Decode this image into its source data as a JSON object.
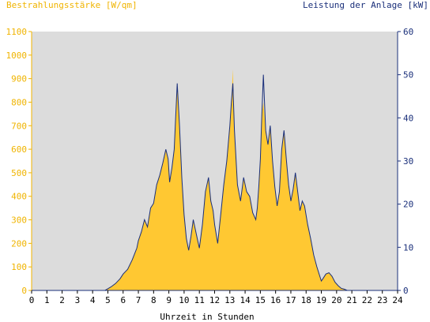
{
  "chart_data": {
    "type": "area",
    "title_left": "Bestrahlungsstärke [W/qm]",
    "title_right": "Leistung der Anlage [kW]",
    "xlabel": "Uhrzeit in Stunden",
    "x_ticks": [
      "0",
      "1",
      "2",
      "3",
      "4",
      "5",
      "6",
      "7",
      "8",
      "9",
      "10",
      "11",
      "12",
      "13",
      "14",
      "15",
      "16",
      "17",
      "18",
      "19",
      "20",
      "21",
      "22",
      "23",
      "24"
    ],
    "xlim": [
      0,
      24
    ],
    "y_left": {
      "ticks": [
        "0",
        "100",
        "200",
        "300",
        "400",
        "500",
        "600",
        "700",
        "800",
        "900",
        "1000",
        "1100"
      ],
      "ylim": [
        0,
        1100
      ]
    },
    "y_right": {
      "ticks": [
        "0",
        "10",
        "20",
        "30",
        "40",
        "50",
        "60"
      ],
      "ylim": [
        0,
        60
      ]
    },
    "grid": false,
    "colors": {
      "irradiance_fill": "#ffc832",
      "power_line": "#1a2f7a",
      "plot_bg": "#dcdcdc",
      "left_axis": "#f0b400",
      "right_axis": "#1a2f7a"
    },
    "series": [
      {
        "axis": "left",
        "style": "filled-area",
        "x": [
          0,
          4.8,
          5.0,
          5.2,
          5.5,
          5.8,
          6.0,
          6.3,
          6.6,
          6.9,
          7.0,
          7.2,
          7.4,
          7.6,
          7.8,
          8.0,
          8.2,
          8.4,
          8.6,
          8.8,
          8.95,
          9.05,
          9.2,
          9.35,
          9.45,
          9.55,
          9.7,
          9.85,
          10.0,
          10.15,
          10.3,
          10.45,
          10.6,
          10.8,
          11.0,
          11.2,
          11.4,
          11.6,
          11.75,
          11.9,
          12.0,
          12.2,
          12.4,
          12.6,
          12.8,
          13.0,
          13.1,
          13.2,
          13.3,
          13.5,
          13.7,
          13.9,
          14.1,
          14.3,
          14.5,
          14.7,
          14.8,
          14.9,
          15.0,
          15.1,
          15.2,
          15.35,
          15.5,
          15.65,
          15.8,
          15.95,
          16.1,
          16.25,
          16.4,
          16.55,
          16.7,
          16.85,
          17.0,
          17.15,
          17.3,
          17.45,
          17.6,
          17.75,
          17.9,
          18.1,
          18.3,
          18.5,
          18.7,
          18.9,
          19.0,
          19.1,
          19.3,
          19.5,
          19.7,
          19.9,
          20.1,
          20.3,
          20.5,
          20.7,
          21.0,
          24
        ],
        "values": [
          0,
          0,
          8,
          15,
          30,
          50,
          70,
          90,
          130,
          180,
          210,
          250,
          300,
          270,
          350,
          370,
          450,
          490,
          540,
          600,
          560,
          460,
          520,
          600,
          740,
          860,
          700,
          480,
          320,
          220,
          170,
          230,
          300,
          240,
          180,
          280,
          420,
          480,
          380,
          340,
          280,
          200,
          320,
          450,
          550,
          700,
          800,
          940,
          680,
          450,
          380,
          480,
          420,
          400,
          330,
          300,
          350,
          440,
          560,
          750,
          800,
          680,
          620,
          700,
          550,
          440,
          360,
          420,
          600,
          680,
          560,
          450,
          380,
          430,
          500,
          420,
          340,
          380,
          360,
          280,
          220,
          150,
          100,
          60,
          40,
          50,
          70,
          75,
          60,
          35,
          20,
          10,
          5,
          0,
          0,
          0
        ]
      },
      {
        "axis": "right",
        "style": "line",
        "x": [
          0,
          4.8,
          5.0,
          5.2,
          5.5,
          5.8,
          6.0,
          6.3,
          6.6,
          6.9,
          7.0,
          7.2,
          7.4,
          7.6,
          7.8,
          8.0,
          8.2,
          8.4,
          8.6,
          8.8,
          8.95,
          9.05,
          9.2,
          9.35,
          9.45,
          9.55,
          9.7,
          9.85,
          10.0,
          10.15,
          10.3,
          10.45,
          10.6,
          10.8,
          11.0,
          11.2,
          11.4,
          11.6,
          11.75,
          11.9,
          12.0,
          12.2,
          12.4,
          12.6,
          12.8,
          13.0,
          13.1,
          13.2,
          13.3,
          13.5,
          13.7,
          13.9,
          14.1,
          14.3,
          14.5,
          14.7,
          14.8,
          14.9,
          15.0,
          15.1,
          15.2,
          15.35,
          15.5,
          15.65,
          15.8,
          15.95,
          16.1,
          16.25,
          16.4,
          16.55,
          16.7,
          16.85,
          17.0,
          17.15,
          17.3,
          17.45,
          17.6,
          17.75,
          17.9,
          18.1,
          18.3,
          18.5,
          18.7,
          18.9,
          19.0,
          19.1,
          19.3,
          19.5,
          19.7,
          19.9,
          20.1,
          20.3,
          20.5,
          20.7,
          21.0,
          24
        ],
        "values": [
          0,
          0,
          0.4,
          0.8,
          1.6,
          2.7,
          3.8,
          4.9,
          7.1,
          9.8,
          11.5,
          13.6,
          16.4,
          14.7,
          19.1,
          20.2,
          24.5,
          26.7,
          29.5,
          32.7,
          30.5,
          25.1,
          28.4,
          32.7,
          40.4,
          48.0,
          38.2,
          26.2,
          17.5,
          12.0,
          9.3,
          12.5,
          16.4,
          13.1,
          9.8,
          15.3,
          22.9,
          26.2,
          20.7,
          18.5,
          15.3,
          10.9,
          17.5,
          24.5,
          30.0,
          38.2,
          43.6,
          48.0,
          37.1,
          24.5,
          20.7,
          26.2,
          22.9,
          21.8,
          18.0,
          16.4,
          19.1,
          24.0,
          30.5,
          40.9,
          50.0,
          37.1,
          33.8,
          38.2,
          30.0,
          24.0,
          19.6,
          22.9,
          32.7,
          37.1,
          30.5,
          24.5,
          20.7,
          23.5,
          27.3,
          22.9,
          18.5,
          20.7,
          19.6,
          15.3,
          12.0,
          8.2,
          5.5,
          3.3,
          2.2,
          2.7,
          3.8,
          4.1,
          3.3,
          1.9,
          1.1,
          0.5,
          0.3,
          0,
          0,
          0
        ]
      }
    ]
  }
}
